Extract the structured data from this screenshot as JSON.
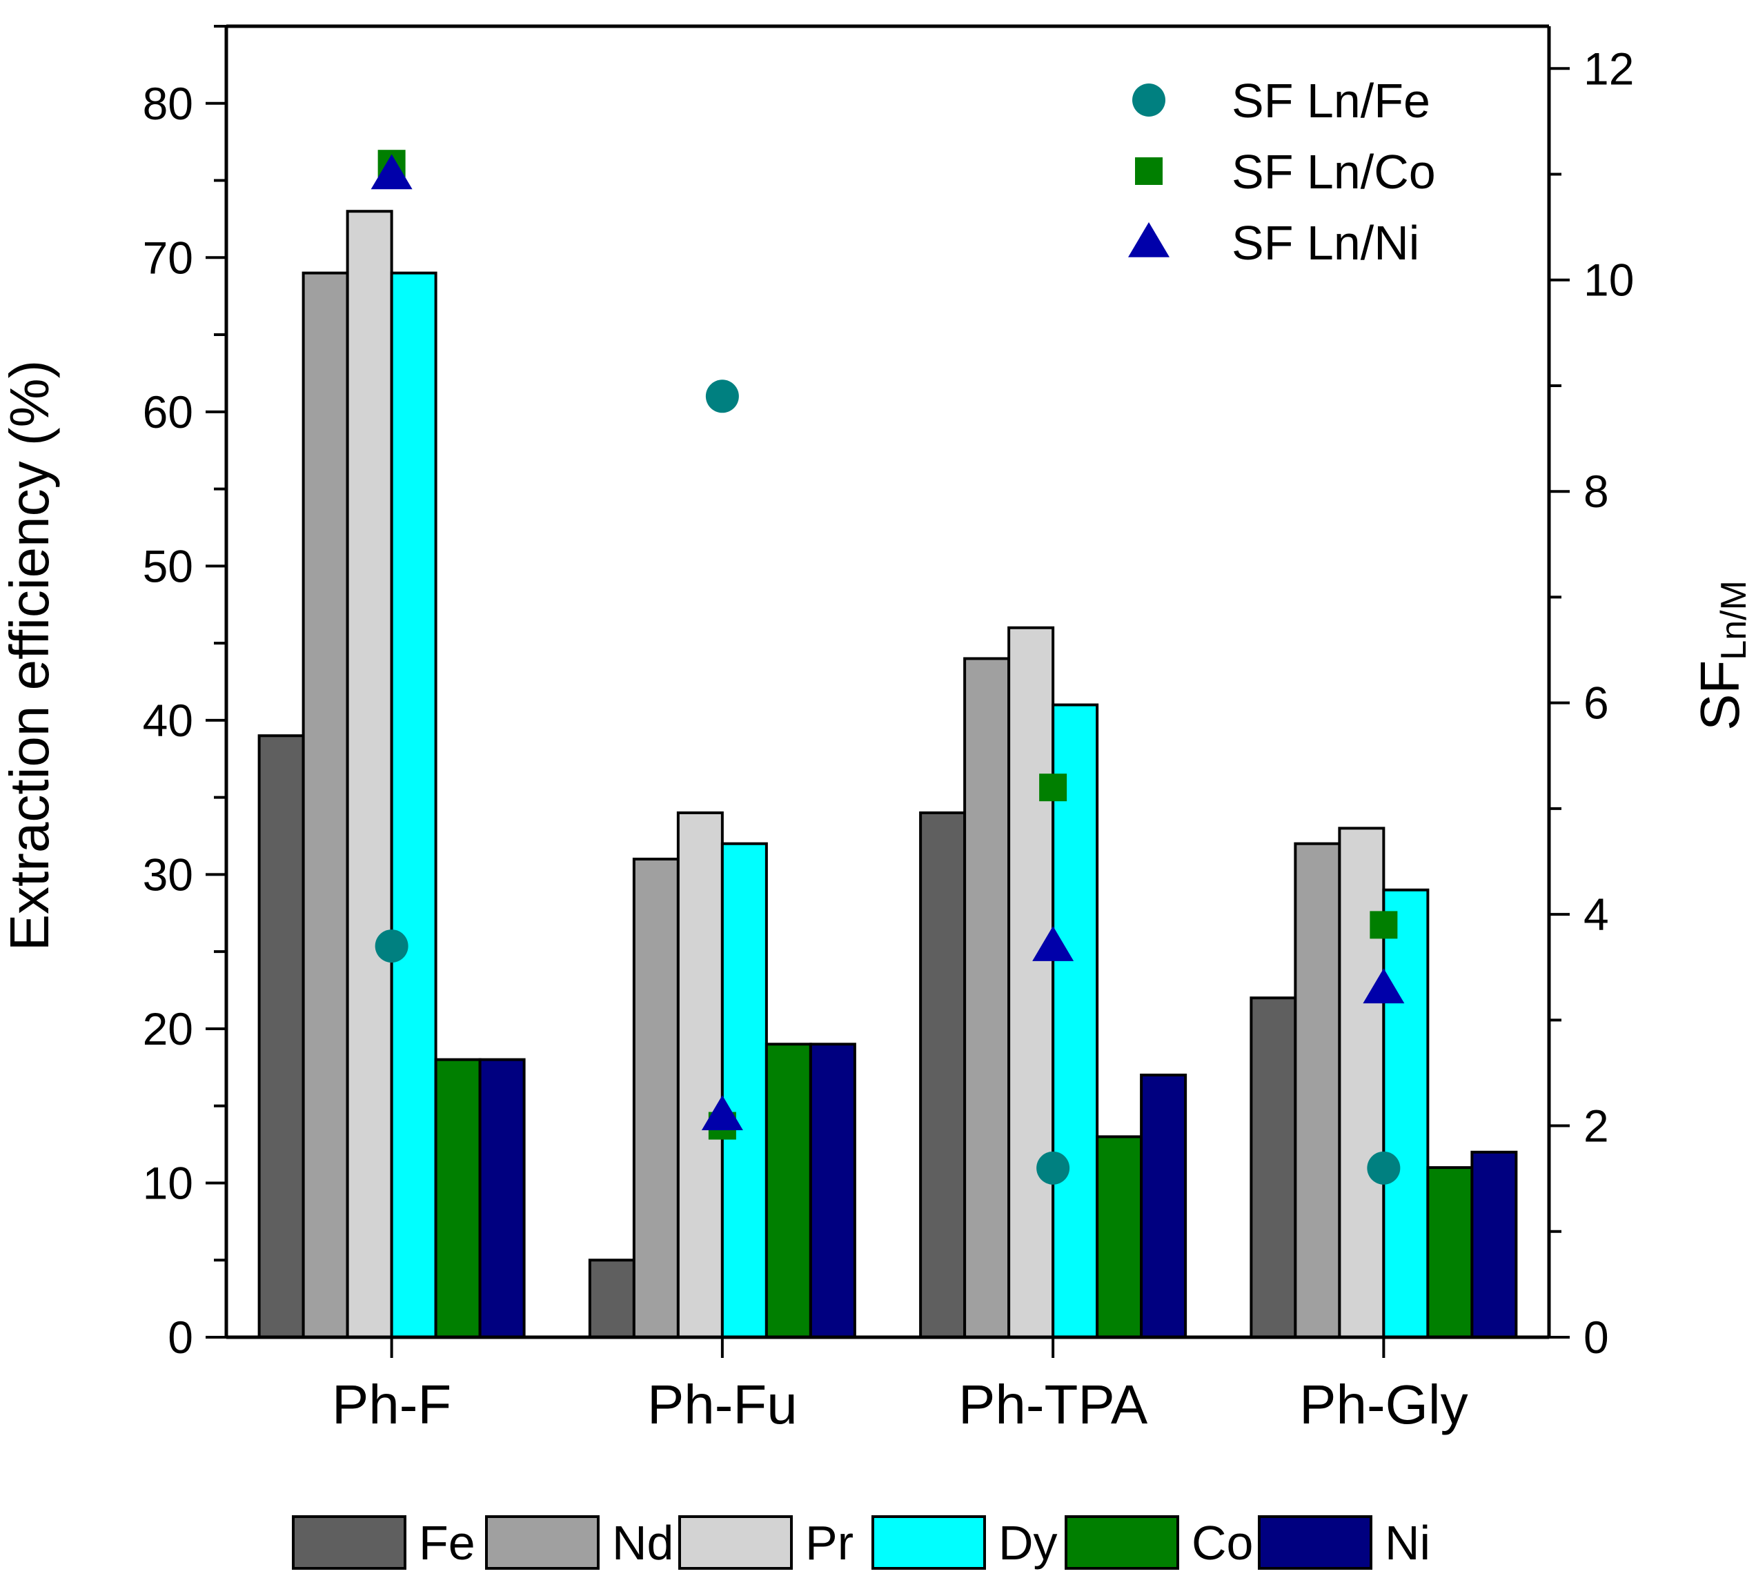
{
  "chart_data": {
    "type": "bar",
    "categories": [
      "Ph-F",
      "Ph-Fu",
      "Ph-TPA",
      "Ph-Gly"
    ],
    "ylabel": "Extraction efficiency (%)",
    "ylim": [
      0,
      85
    ],
    "yticks": [
      0,
      10,
      20,
      30,
      40,
      50,
      60,
      70,
      80
    ],
    "y2label_main": "SF",
    "y2label_sub": "Ln/M",
    "y2lim": [
      0,
      12.4
    ],
    "y2ticks": [
      0,
      2,
      4,
      6,
      8,
      10,
      12
    ],
    "series": [
      {
        "name": "Fe",
        "color": "#5f5f5f",
        "values": [
          39,
          5,
          34,
          22
        ]
      },
      {
        "name": "Nd",
        "color": "#a0a0a0",
        "values": [
          69,
          31,
          44,
          32
        ]
      },
      {
        "name": "Pr",
        "color": "#d3d3d3",
        "values": [
          73,
          34,
          46,
          33
        ]
      },
      {
        "name": "Dy",
        "color": "#00ffff",
        "values": [
          69,
          32,
          41,
          29
        ]
      },
      {
        "name": "Co",
        "color": "#007f00",
        "values": [
          18,
          19,
          13,
          11
        ]
      },
      {
        "name": "Ni",
        "color": "#000080",
        "values": [
          18,
          19,
          17,
          12
        ]
      }
    ],
    "scatter_series": [
      {
        "name": "SF Ln/Fe",
        "marker": "circle",
        "color": "#008080",
        "values": [
          3.7,
          8.9,
          1.6,
          1.6
        ]
      },
      {
        "name": "SF Ln/Co",
        "marker": "square",
        "color": "#007f00",
        "values": [
          11.1,
          2.0,
          5.2,
          3.9
        ]
      },
      {
        "name": "SF Ln/Ni",
        "marker": "triangle",
        "color": "#0000aa",
        "values": [
          11.0,
          2.1,
          3.7,
          3.3
        ]
      }
    ],
    "legend_top": "top-right",
    "legend_bottom": "bottom"
  }
}
